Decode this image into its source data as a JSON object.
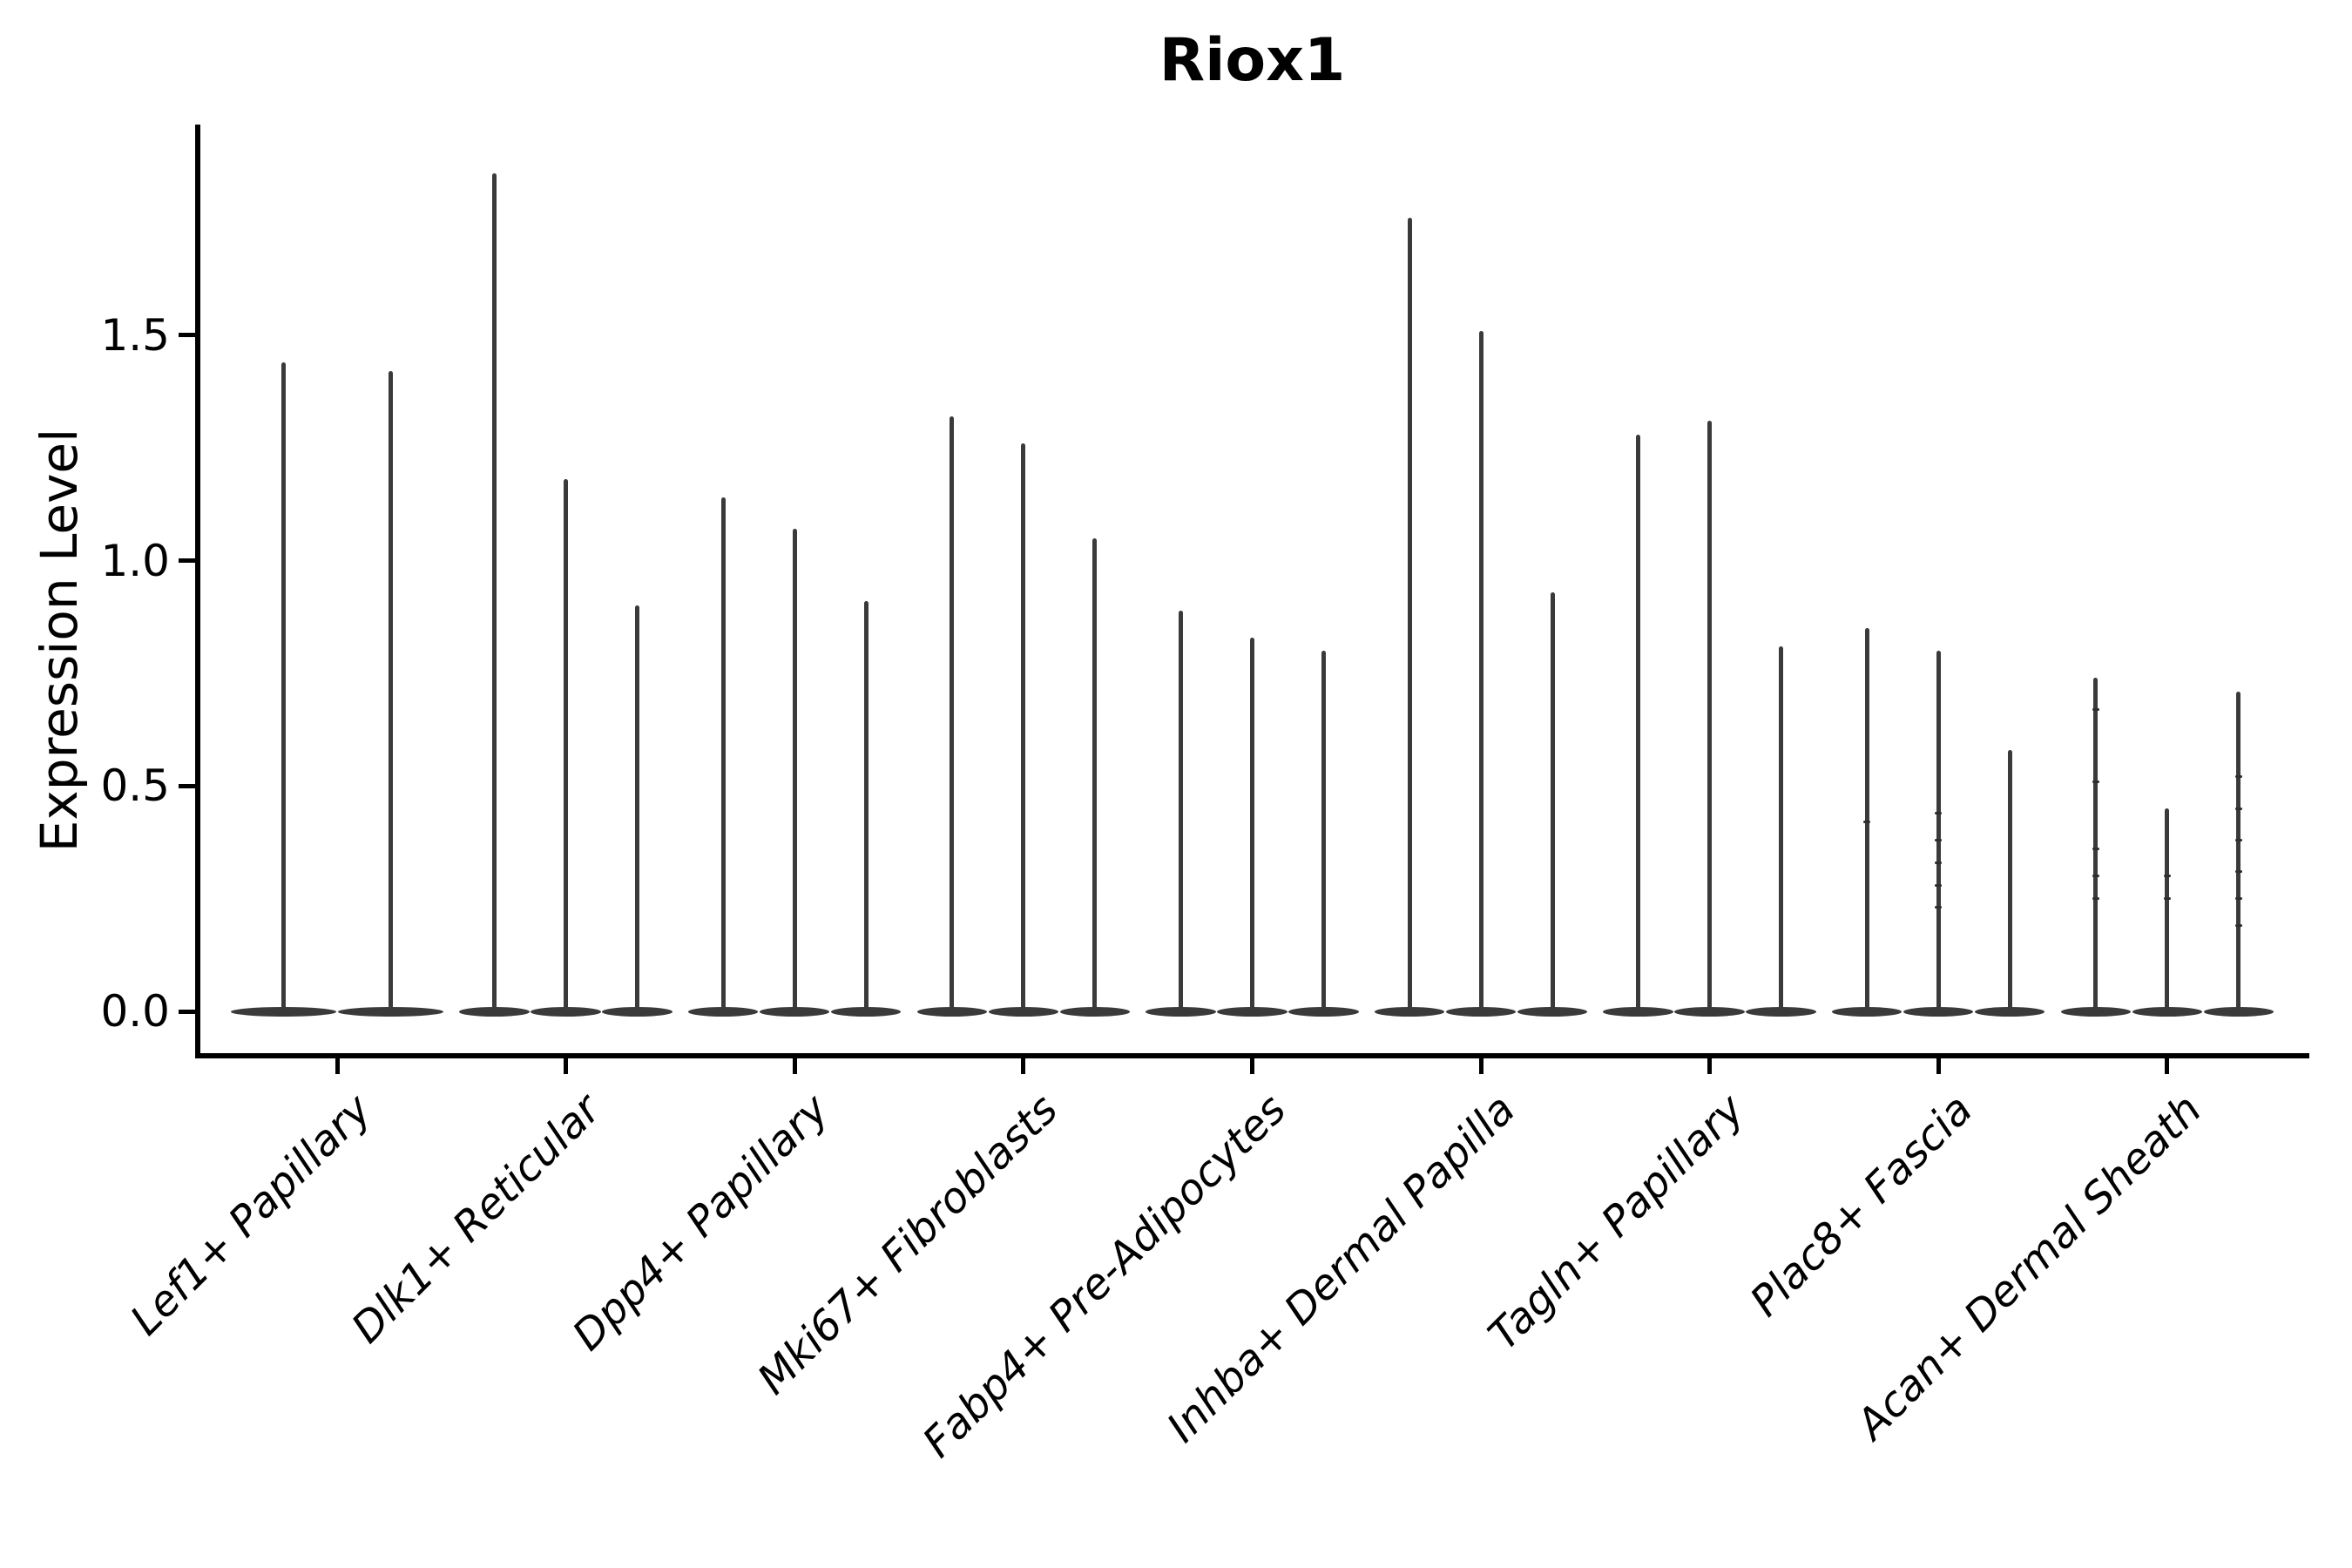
{
  "chart_data": {
    "type": "violin",
    "title": "Riox1",
    "xlabel": "",
    "ylabel": "Expression Level",
    "ytick_labels": [
      "0.0",
      "0.5",
      "1.0",
      "1.5"
    ],
    "ytick_values": [
      0.0,
      0.5,
      1.0,
      1.5
    ],
    "ylim": [
      -0.1,
      1.97
    ],
    "grid": false,
    "legend": null,
    "baseline_value": 0.0,
    "groups": [
      {
        "category": "Lef1+ Papillary",
        "violin_maxima": [
          1.44,
          1.42
        ],
        "jitter_points": [
          [],
          []
        ]
      },
      {
        "category": "Dlk1+ Reticular",
        "violin_maxima": [
          1.86,
          1.18,
          0.9
        ],
        "jitter_points": [
          [],
          [],
          []
        ]
      },
      {
        "category": "Dpp4+ Papillary",
        "violin_maxima": [
          1.14,
          1.07,
          0.91
        ],
        "jitter_points": [
          [],
          [],
          []
        ]
      },
      {
        "category": "Mki67+ Fibroblasts",
        "violin_maxima": [
          1.32,
          1.26,
          1.05
        ],
        "jitter_points": [
          [],
          [],
          []
        ]
      },
      {
        "category": "Fabp4+ Pre-Adipocytes",
        "violin_maxima": [
          0.89,
          0.83,
          0.8
        ],
        "jitter_points": [
          [],
          [],
          []
        ]
      },
      {
        "category": "Inhba+ Dermal Papilla",
        "violin_maxima": [
          1.76,
          1.51,
          0.93
        ],
        "jitter_points": [
          [],
          [],
          []
        ]
      },
      {
        "category": "Tagln+ Papillary",
        "violin_maxima": [
          1.28,
          1.31,
          0.81
        ],
        "jitter_points": [
          [],
          [],
          []
        ]
      },
      {
        "category": "Plac8+ Fascia",
        "violin_maxima": [
          0.85,
          0.8,
          0.58
        ],
        "jitter_points": [
          [
            0.42
          ],
          [
            0.44,
            0.38,
            0.33,
            0.28,
            0.23
          ],
          []
        ]
      },
      {
        "category": "Acan+ Dermal Sheath",
        "violin_maxima": [
          0.74,
          0.45,
          0.71
        ],
        "jitter_points": [
          [
            0.67,
            0.51,
            0.36,
            0.3,
            0.25
          ],
          [
            0.3,
            0.25
          ],
          [
            0.52,
            0.45,
            0.38,
            0.31,
            0.25,
            0.19
          ]
        ]
      }
    ],
    "colors": {
      "violin": "#3a3a3a",
      "jitter": "#2e2e2e",
      "axis": "#000000",
      "text": "#000000",
      "background": "#ffffff"
    }
  }
}
